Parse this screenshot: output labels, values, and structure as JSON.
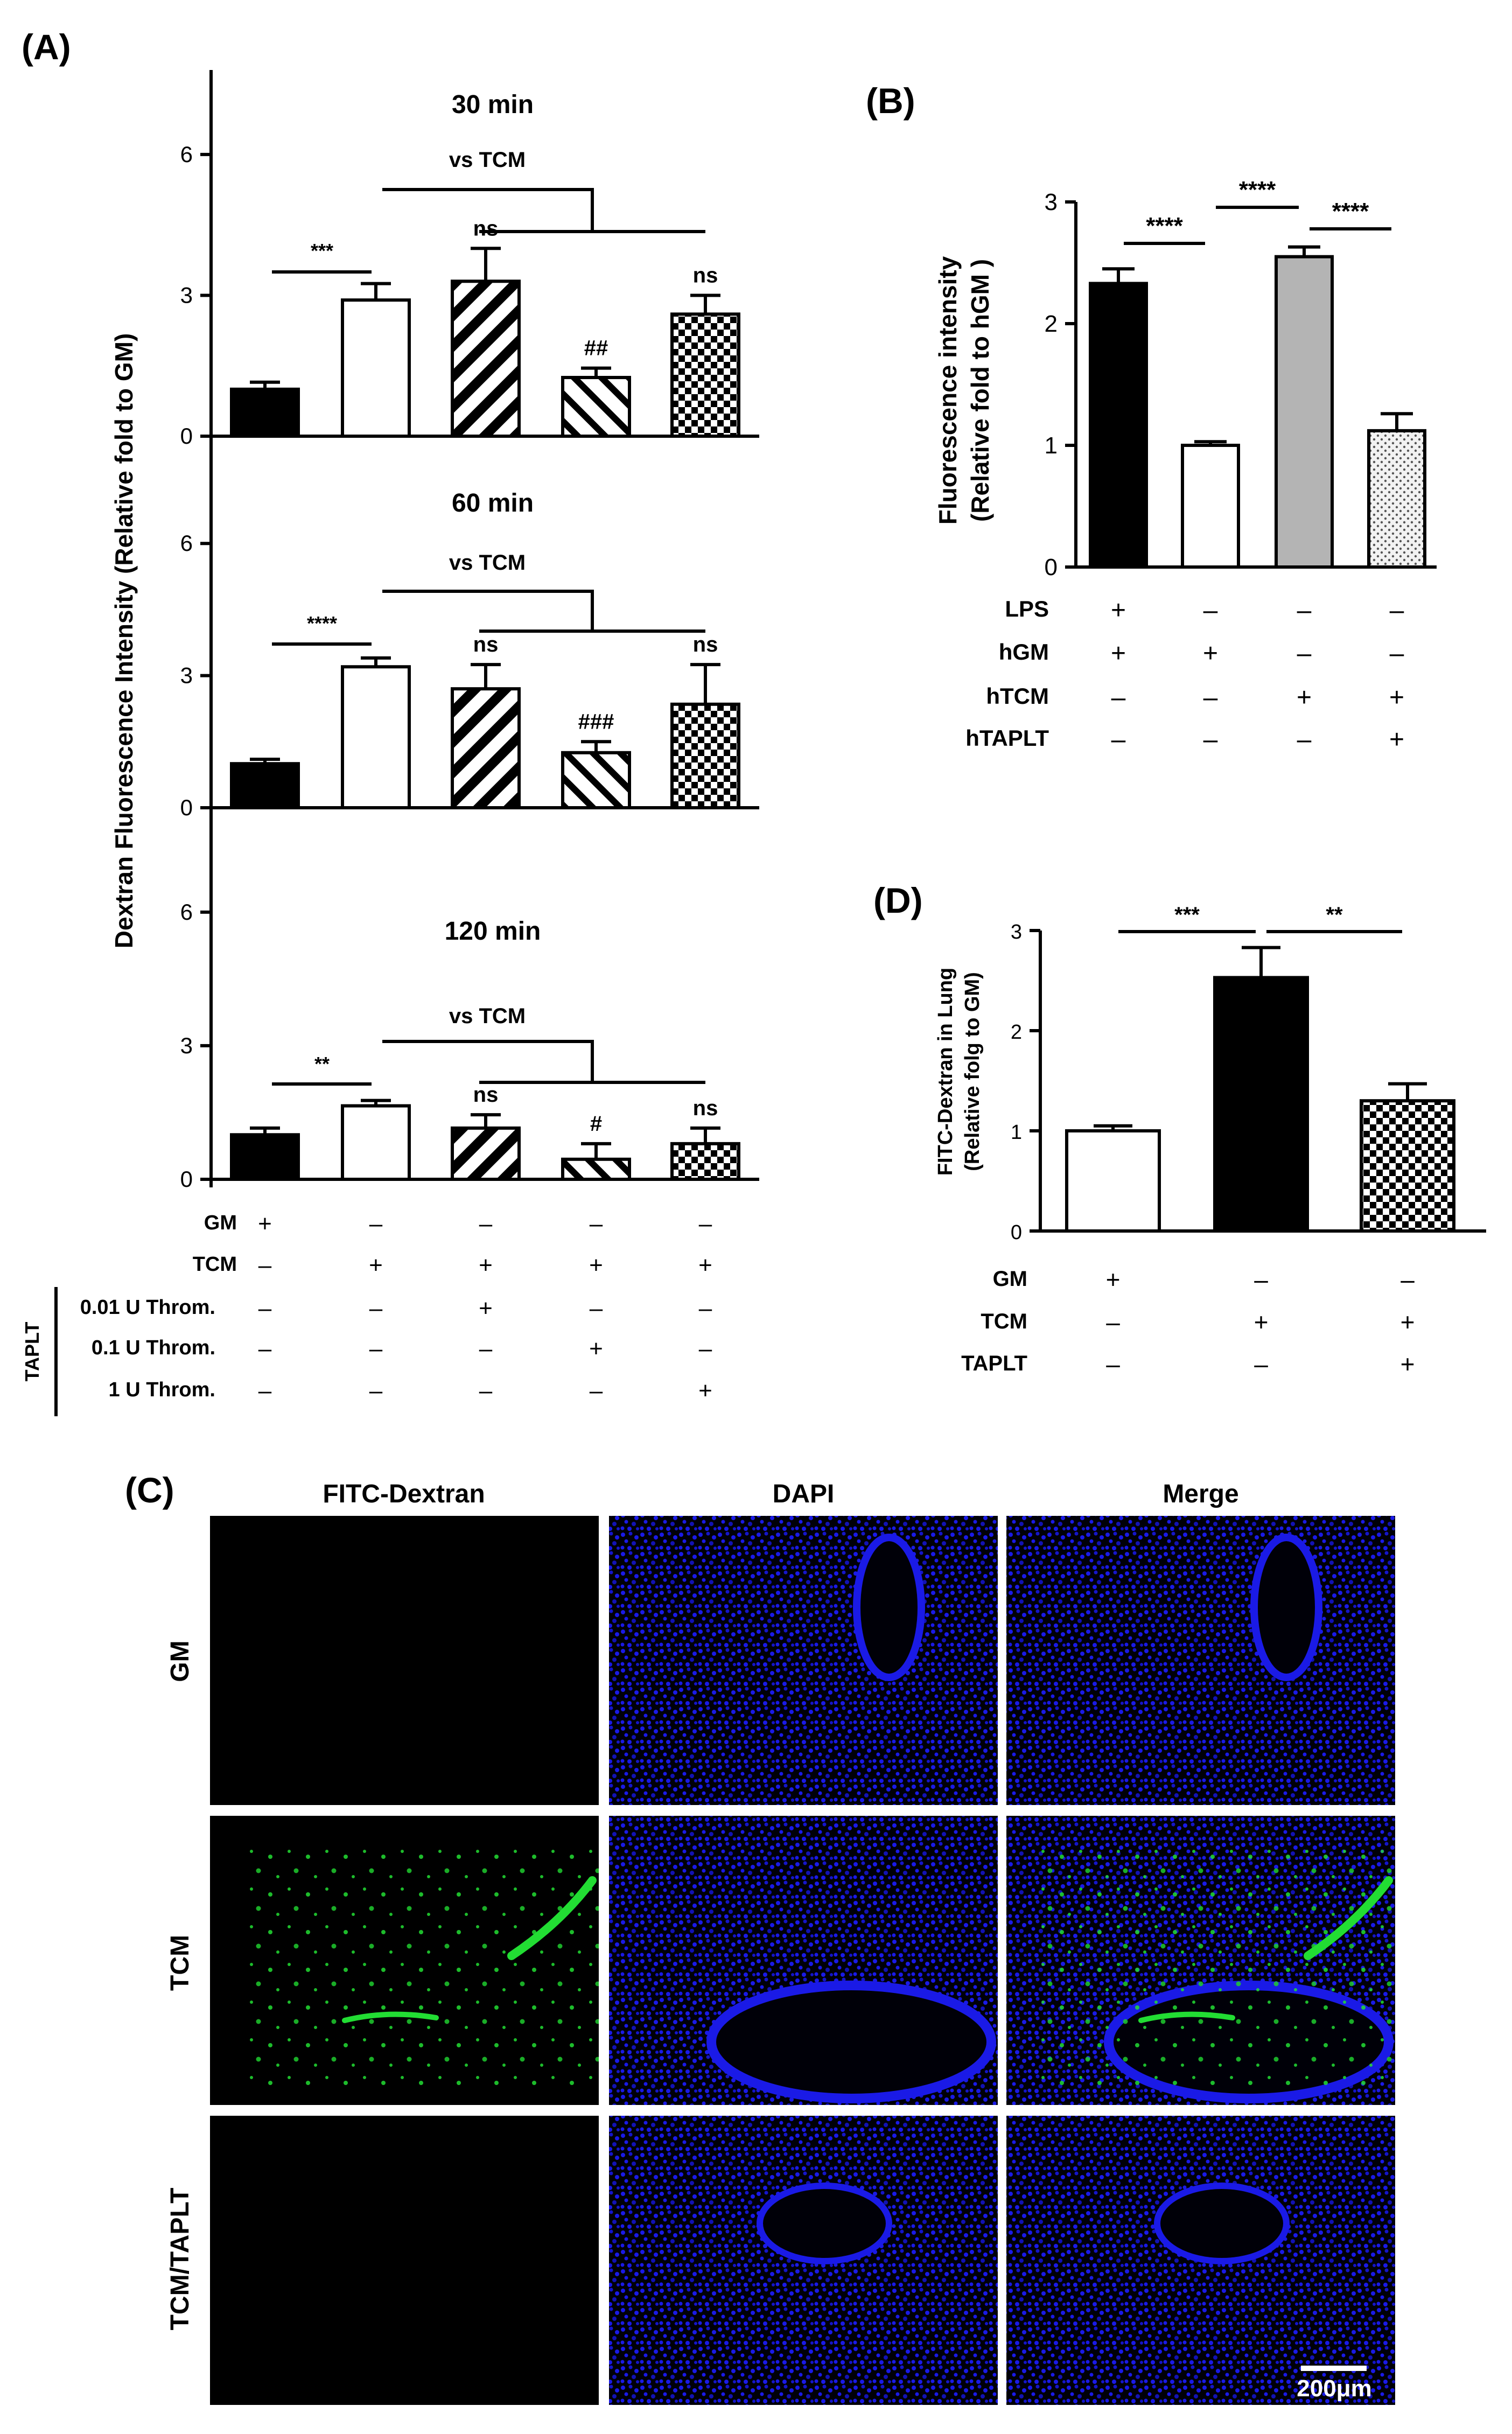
{
  "panels": {
    "A": {
      "label": "(A)"
    },
    "B": {
      "label": "(B)"
    },
    "C": {
      "label": "(C)"
    },
    "D": {
      "label": "(D)"
    }
  },
  "chart_data": [
    {
      "id": "A",
      "type": "bar",
      "ylabel": "Dextran Fluorescence  Intensity (Relative fold to GM)",
      "categories": [
        "GM",
        "TCM",
        "TCM + 0.01 U Throm.",
        "TCM + 0.1 U Throm.",
        "TCM + 1 U Throm."
      ],
      "yticks": [
        "0",
        "3",
        "6"
      ],
      "ylim": [
        0,
        7.8
      ],
      "bar_styles": [
        "solid-black",
        "white",
        "diag-dense",
        "diag-sparse",
        "checker"
      ],
      "comparison_label": "vs TCM",
      "subplots": [
        {
          "title": "30 min",
          "values": [
            1.0,
            2.9,
            3.3,
            1.25,
            2.6
          ],
          "errors": [
            0.15,
            0.35,
            0.7,
            0.2,
            0.4
          ],
          "sig_pair": "***",
          "annotations": [
            "",
            "",
            "ns",
            "##",
            "ns"
          ]
        },
        {
          "title": "60 min",
          "values": [
            1.0,
            3.2,
            2.7,
            1.25,
            2.35
          ],
          "errors": [
            0.1,
            0.2,
            0.55,
            0.25,
            0.9
          ],
          "sig_pair": "****",
          "annotations": [
            "",
            "",
            "ns",
            "###",
            "ns"
          ]
        },
        {
          "title": "120 min",
          "values": [
            1.0,
            1.65,
            1.15,
            0.45,
            0.8
          ],
          "errors": [
            0.15,
            0.12,
            0.3,
            0.35,
            0.35
          ],
          "sig_pair": "**",
          "annotations": [
            "",
            "",
            "ns",
            "#",
            "ns"
          ]
        }
      ],
      "condition_table": {
        "group_label": "TAPLT",
        "rows": [
          {
            "label": "GM",
            "signs": [
              "+",
              "–",
              "–",
              "–",
              "–"
            ]
          },
          {
            "label": "TCM",
            "signs": [
              "–",
              "+",
              "+",
              "+",
              "+"
            ]
          },
          {
            "label": "0.01 U Throm.",
            "signs": [
              "–",
              "–",
              "+",
              "–",
              "–"
            ]
          },
          {
            "label": "0.1 U Throm.",
            "signs": [
              "–",
              "–",
              "–",
              "+",
              "–"
            ]
          },
          {
            "label": "1 U Throm.",
            "signs": [
              "–",
              "–",
              "–",
              "–",
              "+"
            ]
          }
        ]
      }
    },
    {
      "id": "B",
      "type": "bar",
      "ylabel_line1": "Fluorescence intensity",
      "ylabel_line2": "(Relative fold to hGM )",
      "categories": [
        "LPS + hGM",
        "hGM",
        "hTCM",
        "hTCM + hTAPLT"
      ],
      "values": [
        2.33,
        1.0,
        2.55,
        1.12
      ],
      "errors": [
        0.12,
        0.03,
        0.08,
        0.14
      ],
      "bar_colors": [
        "#000000",
        "#ffffff",
        "#b4b4b4",
        "dots"
      ],
      "yticks": [
        "0",
        "1",
        "2",
        "3"
      ],
      "ylim": [
        0,
        3
      ],
      "significance": [
        {
          "from": 0,
          "to": 1,
          "label": "****"
        },
        {
          "from": 1,
          "to": 2,
          "label": "****"
        },
        {
          "from": 2,
          "to": 3,
          "label": "****"
        }
      ],
      "condition_table": {
        "rows": [
          {
            "label": "LPS",
            "signs": [
              "+",
              "–",
              "–",
              "–"
            ]
          },
          {
            "label": "hGM",
            "signs": [
              "+",
              "+",
              "–",
              "–"
            ]
          },
          {
            "label": "hTCM",
            "signs": [
              "–",
              "–",
              "+",
              "+"
            ]
          },
          {
            "label": "hTAPLT",
            "signs": [
              "–",
              "–",
              "–",
              "+"
            ]
          }
        ]
      }
    },
    {
      "id": "D",
      "type": "bar",
      "ylabel_line1": "FITC-Dextran in Lung",
      "ylabel_line2": "(Relative folg to GM)",
      "categories": [
        "GM",
        "TCM",
        "TCM + TAPLT"
      ],
      "values": [
        1.0,
        2.53,
        1.3
      ],
      "errors": [
        0.05,
        0.3,
        0.17
      ],
      "bar_colors": [
        "#ffffff",
        "#000000",
        "checker"
      ],
      "yticks": [
        "0",
        "1",
        "2",
        "3"
      ],
      "ylim": [
        0,
        3
      ],
      "significance": [
        {
          "from": 0,
          "to": 1,
          "label": "***"
        },
        {
          "from": 1,
          "to": 2,
          "label": "**"
        }
      ],
      "condition_table": {
        "rows": [
          {
            "label": "GM",
            "signs": [
              "+",
              "–",
              "–"
            ]
          },
          {
            "label": "TCM",
            "signs": [
              "–",
              "+",
              "+"
            ]
          },
          {
            "label": "TAPLT",
            "signs": [
              "–",
              "–",
              "+"
            ]
          }
        ]
      }
    }
  ],
  "panel_C": {
    "columns": [
      "FITC-Dextran",
      "DAPI",
      "Merge"
    ],
    "rows": [
      "GM",
      "TCM",
      "TCM/TAPLT"
    ],
    "scale_bar": "200μm",
    "channel_colors": {
      "fitc": "#22dd33",
      "dapi": "#1a1ae6",
      "background": "#000000"
    }
  }
}
